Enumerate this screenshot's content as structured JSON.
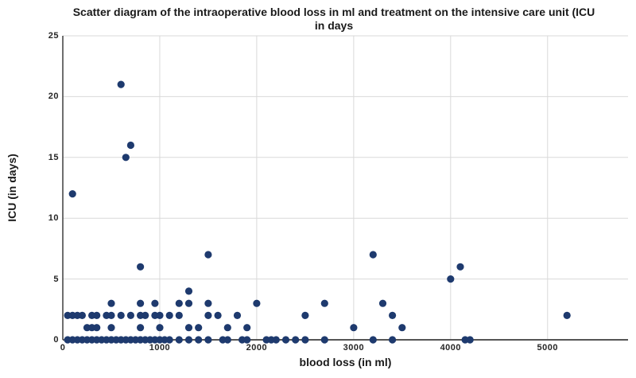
{
  "chart_data": {
    "type": "scatter",
    "title_line1": "Scatter diagram of the intraoperative blood loss in ml and treatment on the intensive care unit (ICU",
    "title_line2": "in days",
    "xlabel": "blood loss (in ml)",
    "ylabel": "ICU (in days)",
    "xlim": [
      0,
      5830
    ],
    "ylim": [
      0,
      25
    ],
    "xticks": [
      0,
      1000,
      2000,
      3000,
      4000,
      5000
    ],
    "yticks": [
      0,
      5,
      10,
      15,
      20,
      25
    ],
    "grid": true,
    "legend": "none",
    "point_color": "#1e3a6e",
    "grid_color": "#d9d9d9",
    "spine_color": "#555555",
    "text_color": "#1a1a1a",
    "points": [
      [
        50,
        0
      ],
      [
        100,
        0
      ],
      [
        150,
        0
      ],
      [
        200,
        0
      ],
      [
        250,
        0
      ],
      [
        300,
        0
      ],
      [
        350,
        0
      ],
      [
        400,
        0
      ],
      [
        450,
        0
      ],
      [
        500,
        0
      ],
      [
        550,
        0
      ],
      [
        600,
        0
      ],
      [
        650,
        0
      ],
      [
        700,
        0
      ],
      [
        750,
        0
      ],
      [
        800,
        0
      ],
      [
        850,
        0
      ],
      [
        900,
        0
      ],
      [
        950,
        0
      ],
      [
        1000,
        0
      ],
      [
        1050,
        0
      ],
      [
        1100,
        0
      ],
      [
        1200,
        0
      ],
      [
        1300,
        0
      ],
      [
        1400,
        0
      ],
      [
        1500,
        0
      ],
      [
        1650,
        0
      ],
      [
        1700,
        0
      ],
      [
        1850,
        0
      ],
      [
        1900,
        0
      ],
      [
        2100,
        0
      ],
      [
        2150,
        0
      ],
      [
        2200,
        0
      ],
      [
        2300,
        0
      ],
      [
        2400,
        0
      ],
      [
        2500,
        0
      ],
      [
        2700,
        0
      ],
      [
        3200,
        0
      ],
      [
        3400,
        0
      ],
      [
        4150,
        0
      ],
      [
        4200,
        0
      ],
      [
        250,
        1
      ],
      [
        300,
        1
      ],
      [
        350,
        1
      ],
      [
        500,
        1
      ],
      [
        800,
        1
      ],
      [
        1000,
        1
      ],
      [
        1300,
        1
      ],
      [
        1400,
        1
      ],
      [
        1700,
        1
      ],
      [
        1900,
        1
      ],
      [
        3000,
        1
      ],
      [
        3500,
        1
      ],
      [
        50,
        2
      ],
      [
        100,
        2
      ],
      [
        150,
        2
      ],
      [
        200,
        2
      ],
      [
        300,
        2
      ],
      [
        350,
        2
      ],
      [
        450,
        2
      ],
      [
        500,
        2
      ],
      [
        600,
        2
      ],
      [
        700,
        2
      ],
      [
        800,
        2
      ],
      [
        850,
        2
      ],
      [
        950,
        2
      ],
      [
        1000,
        2
      ],
      [
        1100,
        2
      ],
      [
        1200,
        2
      ],
      [
        1500,
        2
      ],
      [
        1600,
        2
      ],
      [
        1800,
        2
      ],
      [
        2500,
        2
      ],
      [
        3400,
        2
      ],
      [
        5200,
        2
      ],
      [
        500,
        3
      ],
      [
        800,
        3
      ],
      [
        950,
        3
      ],
      [
        1200,
        3
      ],
      [
        1300,
        3
      ],
      [
        1500,
        3
      ],
      [
        2000,
        3
      ],
      [
        2700,
        3
      ],
      [
        3300,
        3
      ],
      [
        1300,
        4
      ],
      [
        4000,
        5
      ],
      [
        800,
        6
      ],
      [
        4100,
        6
      ],
      [
        1500,
        7
      ],
      [
        3200,
        7
      ],
      [
        100,
        12
      ],
      [
        650,
        15
      ],
      [
        700,
        16
      ],
      [
        600,
        21
      ]
    ]
  }
}
